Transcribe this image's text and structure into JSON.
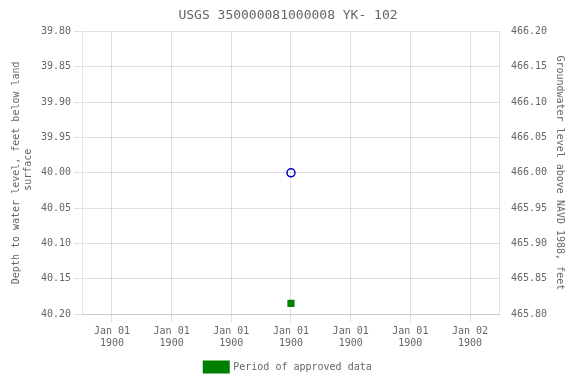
{
  "chart_data": {
    "type": "scatter",
    "title": "USGS 350000081000008 YK- 102",
    "ylabel": "Depth to water level, feet below land\n surface",
    "y2label": "Groundwater level above NAVD 1988, feet",
    "categories": [
      "Jan 01\n1900",
      "Jan 01\n1900",
      "Jan 01\n1900",
      "Jan 01\n1900",
      "Jan 01\n1900",
      "Jan 01\n1900",
      "Jan 02\n1900"
    ],
    "series": [
      {
        "color": "#0000cc",
        "marker": "open_circle",
        "values": [
          null,
          null,
          null,
          40.0,
          null,
          null,
          null
        ]
      },
      {
        "name": "Period of approved data",
        "color": "#008000",
        "marker": "square",
        "values": [
          null,
          null,
          null,
          40.185,
          null,
          null,
          null
        ]
      }
    ],
    "ylim": [
      40.2,
      39.8
    ],
    "yticks": [
      {
        "value": 39.8,
        "label": "39.80"
      },
      {
        "value": 39.85,
        "label": "39.85"
      },
      {
        "value": 39.9,
        "label": "39.90"
      },
      {
        "value": 39.95,
        "label": "39.95"
      },
      {
        "value": 40.0,
        "label": "40.00"
      },
      {
        "value": 40.05,
        "label": "40.05"
      },
      {
        "value": 40.1,
        "label": "40.10"
      },
      {
        "value": 40.15,
        "label": "40.15"
      },
      {
        "value": 40.2,
        "label": "40.20"
      }
    ],
    "y2lim": [
      465.8,
      466.2
    ],
    "y2ticks": [
      {
        "value": 466.2,
        "label": "466.20"
      },
      {
        "value": 466.15,
        "label": "466.15"
      },
      {
        "value": 466.1,
        "label": "466.10"
      },
      {
        "value": 466.05,
        "label": "466.05"
      },
      {
        "value": 466.0,
        "label": "466.00"
      },
      {
        "value": 465.95,
        "label": "465.95"
      },
      {
        "value": 465.9,
        "label": "465.90"
      },
      {
        "value": 465.85,
        "label": "465.85"
      },
      {
        "value": 465.8,
        "label": "465.80"
      }
    ],
    "grid": true,
    "legend": "bottom"
  }
}
